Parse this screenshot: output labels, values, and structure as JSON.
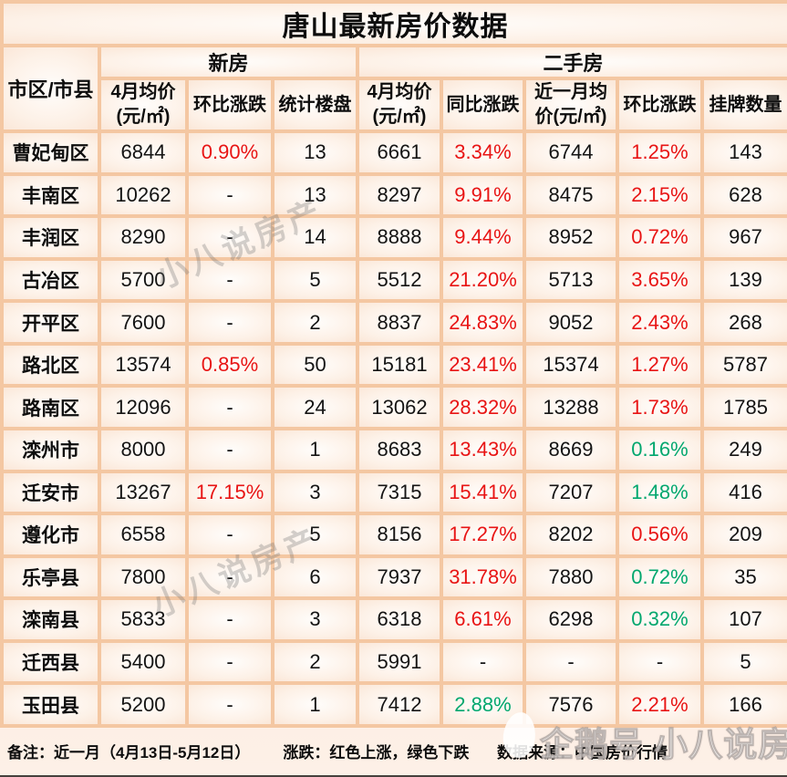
{
  "title": "唐山最新房价数据",
  "colors": {
    "up_red": "#e81414",
    "down_green": "#00a76e",
    "grid_border": "#f4c7a2",
    "cell_bg": "#fdf1e7"
  },
  "chart_data": {
    "type": "table",
    "title": "唐山最新房价数据",
    "region_header": "市区/市县",
    "groups": [
      {
        "label": "新房",
        "span": 3
      },
      {
        "label": "二手房",
        "span": 5
      }
    ],
    "columns": [
      "4月均价\n(元/㎡)",
      "环比涨跌",
      "统计楼盘",
      "4月均价\n(元/㎡)",
      "同比涨跌",
      "近一月均\n价(元/㎡)",
      "环比涨跌",
      "挂牌数量"
    ],
    "rows": [
      {
        "region": "曹妃甸区",
        "cells": [
          {
            "v": "6844"
          },
          {
            "v": "0.90%",
            "c": "up"
          },
          {
            "v": "13"
          },
          {
            "v": "6661"
          },
          {
            "v": "3.34%",
            "c": "up"
          },
          {
            "v": "6744"
          },
          {
            "v": "1.25%",
            "c": "up"
          },
          {
            "v": "143"
          }
        ]
      },
      {
        "region": "丰南区",
        "cells": [
          {
            "v": "10262"
          },
          {
            "v": "-"
          },
          {
            "v": "13"
          },
          {
            "v": "8297"
          },
          {
            "v": "9.91%",
            "c": "up"
          },
          {
            "v": "8475"
          },
          {
            "v": "2.15%",
            "c": "up"
          },
          {
            "v": "628"
          }
        ]
      },
      {
        "region": "丰润区",
        "cells": [
          {
            "v": "8290"
          },
          {
            "v": "-"
          },
          {
            "v": "14"
          },
          {
            "v": "8888"
          },
          {
            "v": "9.44%",
            "c": "up"
          },
          {
            "v": "8952"
          },
          {
            "v": "0.72%",
            "c": "up"
          },
          {
            "v": "967"
          }
        ]
      },
      {
        "region": "古冶区",
        "cells": [
          {
            "v": "5700"
          },
          {
            "v": "-"
          },
          {
            "v": "5"
          },
          {
            "v": "5512"
          },
          {
            "v": "21.20%",
            "c": "up"
          },
          {
            "v": "5713"
          },
          {
            "v": "3.65%",
            "c": "up"
          },
          {
            "v": "139"
          }
        ]
      },
      {
        "region": "开平区",
        "cells": [
          {
            "v": "7600"
          },
          {
            "v": "-"
          },
          {
            "v": "2"
          },
          {
            "v": "8837"
          },
          {
            "v": "24.83%",
            "c": "up"
          },
          {
            "v": "9052"
          },
          {
            "v": "2.43%",
            "c": "up"
          },
          {
            "v": "268"
          }
        ]
      },
      {
        "region": "路北区",
        "cells": [
          {
            "v": "13574"
          },
          {
            "v": "0.85%",
            "c": "up"
          },
          {
            "v": "50"
          },
          {
            "v": "15181"
          },
          {
            "v": "23.41%",
            "c": "up"
          },
          {
            "v": "15374"
          },
          {
            "v": "1.27%",
            "c": "up"
          },
          {
            "v": "5787"
          }
        ]
      },
      {
        "region": "路南区",
        "cells": [
          {
            "v": "12096"
          },
          {
            "v": "-"
          },
          {
            "v": "24"
          },
          {
            "v": "13062"
          },
          {
            "v": "28.32%",
            "c": "up"
          },
          {
            "v": "13288"
          },
          {
            "v": "1.73%",
            "c": "up"
          },
          {
            "v": "1785"
          }
        ]
      },
      {
        "region": "滦州市",
        "cells": [
          {
            "v": "8000"
          },
          {
            "v": "-"
          },
          {
            "v": "1"
          },
          {
            "v": "8683"
          },
          {
            "v": "13.43%",
            "c": "up"
          },
          {
            "v": "8669"
          },
          {
            "v": "0.16%",
            "c": "down"
          },
          {
            "v": "249"
          }
        ]
      },
      {
        "region": "迁安市",
        "cells": [
          {
            "v": "13267"
          },
          {
            "v": "17.15%",
            "c": "up"
          },
          {
            "v": "3"
          },
          {
            "v": "7315"
          },
          {
            "v": "15.41%",
            "c": "up"
          },
          {
            "v": "7207"
          },
          {
            "v": "1.48%",
            "c": "down"
          },
          {
            "v": "416"
          }
        ]
      },
      {
        "region": "遵化市",
        "cells": [
          {
            "v": "6558"
          },
          {
            "v": "-"
          },
          {
            "v": "5"
          },
          {
            "v": "8156"
          },
          {
            "v": "17.27%",
            "c": "up"
          },
          {
            "v": "8202"
          },
          {
            "v": "0.56%",
            "c": "up"
          },
          {
            "v": "209"
          }
        ]
      },
      {
        "region": "乐亭县",
        "cells": [
          {
            "v": "7800"
          },
          {
            "v": "-"
          },
          {
            "v": "6"
          },
          {
            "v": "7937"
          },
          {
            "v": "31.78%",
            "c": "up"
          },
          {
            "v": "7880"
          },
          {
            "v": "0.72%",
            "c": "down"
          },
          {
            "v": "35"
          }
        ]
      },
      {
        "region": "滦南县",
        "cells": [
          {
            "v": "5833"
          },
          {
            "v": "-"
          },
          {
            "v": "3"
          },
          {
            "v": "6318"
          },
          {
            "v": "6.61%",
            "c": "up"
          },
          {
            "v": "6298"
          },
          {
            "v": "0.32%",
            "c": "down"
          },
          {
            "v": "107"
          }
        ]
      },
      {
        "region": "迁西县",
        "cells": [
          {
            "v": "5400"
          },
          {
            "v": "-"
          },
          {
            "v": "2"
          },
          {
            "v": "5991"
          },
          {
            "v": "-"
          },
          {
            "v": "-"
          },
          {
            "v": "-"
          },
          {
            "v": "5"
          }
        ]
      },
      {
        "region": "玉田县",
        "cells": [
          {
            "v": "5200"
          },
          {
            "v": "-"
          },
          {
            "v": "1"
          },
          {
            "v": "7412"
          },
          {
            "v": "2.88%",
            "c": "down"
          },
          {
            "v": "7576"
          },
          {
            "v": "2.21%",
            "c": "up"
          },
          {
            "v": "166"
          }
        ]
      }
    ]
  },
  "footer": {
    "note": "备注：近一月（4月13日-5月12日）",
    "legend": "涨跌：红色上涨，绿色下跌",
    "source": "数据来源：中国房价行情"
  },
  "watermarks": {
    "diagonal": "小八说房产",
    "corner": "企鹅号 小八说房产"
  }
}
